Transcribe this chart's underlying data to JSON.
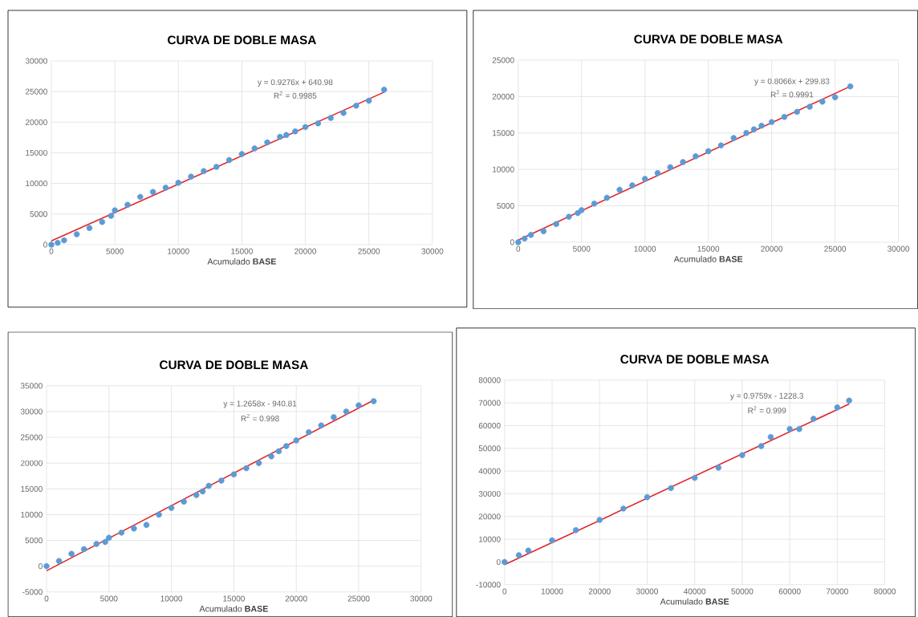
{
  "chart_data": [
    {
      "type": "scatter",
      "title": "CURVA DE DOBLE MASA",
      "xlabel": "Acumulado **BASE**",
      "xlim": [
        0,
        30000
      ],
      "ylim": [
        0,
        30000
      ],
      "xticks": [
        0,
        5000,
        10000,
        15000,
        20000,
        25000,
        30000
      ],
      "yticks": [
        0,
        5000,
        10000,
        15000,
        20000,
        25000,
        30000
      ],
      "grid": true,
      "annotations": [
        "y = 0.9276x + 640.98",
        "R$^{2}$ = 0.9985"
      ],
      "series": [
        {
          "color": "#5b9bd5",
          "marker": "circle",
          "x": [
            0,
            500,
            1000,
            2000,
            3000,
            4000,
            4700,
            5000,
            6000,
            7000,
            8000,
            9000,
            10000,
            11000,
            12000,
            13000,
            14000,
            15000,
            16000,
            17000,
            18000,
            18500,
            19200,
            20000,
            21000,
            22000,
            23000,
            24000,
            25000,
            26200
          ],
          "values": [
            0,
            300,
            700,
            1700,
            2700,
            3700,
            4700,
            5600,
            6500,
            7800,
            8600,
            9300,
            10100,
            11100,
            12000,
            12700,
            13800,
            14800,
            15700,
            16700,
            17600,
            17900,
            18500,
            19200,
            19800,
            20700,
            21500,
            22700,
            23500,
            25300
          ]
        },
        {
          "type": "line",
          "color": "#e0262c",
          "marker": "none",
          "x": [
            0,
            26200
          ],
          "values": [
            600,
            24900
          ]
        }
      ]
    },
    {
      "type": "scatter",
      "title": "CURVA DE DOBLE MASA",
      "xlabel": "Acumulado **BASE**",
      "xlim": [
        0,
        30000
      ],
      "ylim": [
        0,
        25000
      ],
      "xticks": [
        0,
        5000,
        10000,
        15000,
        20000,
        25000,
        30000
      ],
      "yticks": [
        0,
        5000,
        10000,
        15000,
        20000,
        25000
      ],
      "grid": true,
      "annotations": [
        "y = 0.8066x + 299.83",
        "R$^{2}$ = 0.9991"
      ],
      "series": [
        {
          "color": "#5b9bd5",
          "marker": "circle",
          "x": [
            0,
            500,
            1000,
            2000,
            3000,
            4000,
            4700,
            5000,
            6000,
            7000,
            8000,
            9000,
            10000,
            11000,
            12000,
            13000,
            14000,
            15000,
            16000,
            17000,
            18000,
            18600,
            19200,
            20000,
            21000,
            22000,
            23000,
            24000,
            25000,
            26200
          ],
          "values": [
            0,
            500,
            1000,
            1500,
            2500,
            3500,
            4000,
            4400,
            5300,
            6100,
            7200,
            7800,
            8700,
            9500,
            10300,
            11000,
            11800,
            12500,
            13300,
            14300,
            15000,
            15500,
            16000,
            16500,
            17200,
            17900,
            18600,
            19300,
            19900,
            21400
          ]
        },
        {
          "type": "line",
          "color": "#e0262c",
          "marker": "none",
          "x": [
            0,
            26200
          ],
          "values": [
            300,
            21400
          ]
        }
      ]
    },
    {
      "type": "scatter",
      "title": "CURVA DE DOBLE MASA",
      "xlabel": "Acumulado **BASE**",
      "xlim": [
        0,
        30000
      ],
      "ylim": [
        -5000,
        35000
      ],
      "xticks": [
        0,
        5000,
        10000,
        15000,
        20000,
        25000,
        30000
      ],
      "yticks": [
        -5000,
        0,
        5000,
        10000,
        15000,
        20000,
        25000,
        30000,
        35000
      ],
      "grid": true,
      "annotations": [
        "y = 1.2658x - 940.81",
        "R$^{2}$ = 0.998"
      ],
      "series": [
        {
          "color": "#5b9bd5",
          "marker": "circle",
          "x": [
            0,
            1000,
            2000,
            3000,
            4000,
            4700,
            5000,
            6000,
            7000,
            8000,
            9000,
            10000,
            11000,
            12000,
            12500,
            13000,
            14000,
            15000,
            16000,
            17000,
            18000,
            18600,
            19200,
            20000,
            21000,
            22000,
            23000,
            24000,
            25000,
            26200
          ],
          "values": [
            0,
            1000,
            2400,
            3300,
            4300,
            4700,
            5500,
            6500,
            7300,
            8000,
            10000,
            11300,
            12500,
            13800,
            14500,
            15600,
            16600,
            17800,
            19000,
            20000,
            21300,
            22300,
            23300,
            24400,
            26000,
            27300,
            28900,
            30000,
            31200,
            32000
          ]
        },
        {
          "type": "line",
          "color": "#e0262c",
          "marker": "none",
          "x": [
            0,
            26200
          ],
          "values": [
            -900,
            32200
          ]
        }
      ]
    },
    {
      "type": "scatter",
      "title": "CURVA DE DOBLE MASA",
      "xlabel": "Acumulado **BASE**",
      "xlim": [
        0,
        80000
      ],
      "ylim": [
        -10000,
        80000
      ],
      "xticks": [
        0,
        10000,
        20000,
        30000,
        40000,
        50000,
        60000,
        70000,
        80000
      ],
      "yticks": [
        -10000,
        0,
        10000,
        20000,
        30000,
        40000,
        50000,
        60000,
        70000,
        80000
      ],
      "grid": true,
      "annotations": [
        "y = 0.9759x - 1228.3",
        "R$^{2}$ = 0.999"
      ],
      "series": [
        {
          "color": "#5b9bd5",
          "marker": "circle",
          "x": [
            0,
            3000,
            5000,
            10000,
            15000,
            20000,
            25000,
            30000,
            35000,
            40000,
            45000,
            50000,
            54000,
            56000,
            60000,
            62000,
            65000,
            70000,
            72500
          ],
          "values": [
            0,
            3000,
            5000,
            9500,
            14000,
            18500,
            23500,
            28500,
            32500,
            37000,
            41500,
            47000,
            51000,
            55000,
            58500,
            58500,
            63000,
            68000,
            71000
          ]
        },
        {
          "type": "line",
          "color": "#e0262c",
          "marker": "none",
          "x": [
            0,
            72500
          ],
          "values": [
            -1200,
            69500
          ]
        }
      ]
    }
  ]
}
